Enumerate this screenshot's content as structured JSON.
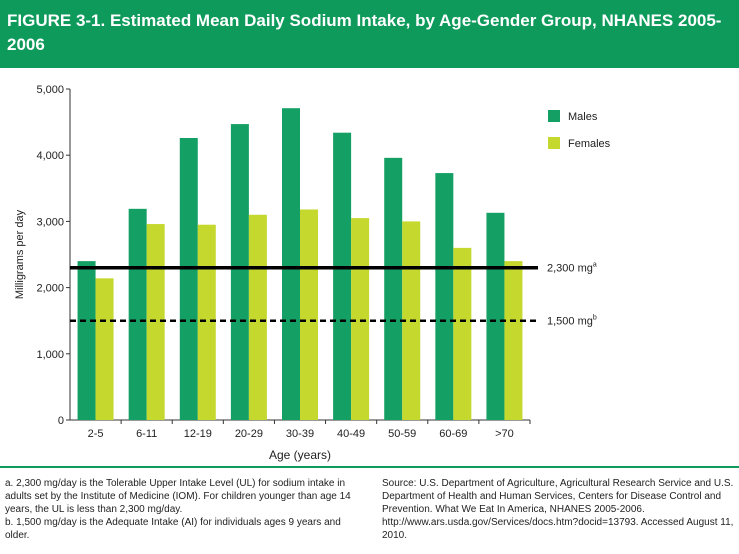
{
  "title": "FIGURE 3-1. Estimated Mean Daily Sodium Intake, by Age-Gender Group, NHANES 2005-2006",
  "colors": {
    "header": "#0d9a5b",
    "males": "#14a064",
    "females": "#c4d82e"
  },
  "chart_data": {
    "type": "bar",
    "xlabel": "Age (years)",
    "ylabel": "Milligrams per day",
    "ylim": [
      0,
      5000
    ],
    "yticks": [
      "0",
      "1,000",
      "2,000",
      "3,000",
      "4,000",
      "5,000"
    ],
    "ytick_values": [
      0,
      1000,
      2000,
      3000,
      4000,
      5000
    ],
    "categories": [
      "2-5",
      "6-11",
      "12-19",
      "20-29",
      "30-39",
      "40-49",
      "50-59",
      "60-69",
      ">70"
    ],
    "series": [
      {
        "name": "Males",
        "values": [
          2400,
          3190,
          4260,
          4470,
          4710,
          4340,
          3960,
          3730,
          3130
        ]
      },
      {
        "name": "Females",
        "values": [
          2140,
          2960,
          2950,
          3100,
          3180,
          3050,
          3000,
          2600,
          2400
        ]
      }
    ],
    "reference_lines": [
      {
        "value": 2300,
        "label": "2,300 mg",
        "note": "a",
        "style": "solid"
      },
      {
        "value": 1500,
        "label": "1,500 mg",
        "note": "b",
        "style": "dashed"
      }
    ],
    "legend_position": "right",
    "grid": false
  },
  "notes": [
    "a. 2,300 mg/day is the Tolerable Upper Intake Level (UL) for sodium intake in adults set by the Institute of Medicine (IOM). For children younger than age 14 years, the UL is less than 2,300 mg/day.",
    "b. 1,500 mg/day is the Adequate Intake (AI) for individuals ages 9 years and older."
  ],
  "source": "Source: U.S. Department of Agriculture, Agricultural Research Service and U.S. Department of Health and Human Services, Centers for Disease Control and Prevention. What We Eat In America, NHANES 2005-2006. http://www.ars.usda.gov/Services/docs.htm?docid=13793. Accessed August 11, 2010."
}
